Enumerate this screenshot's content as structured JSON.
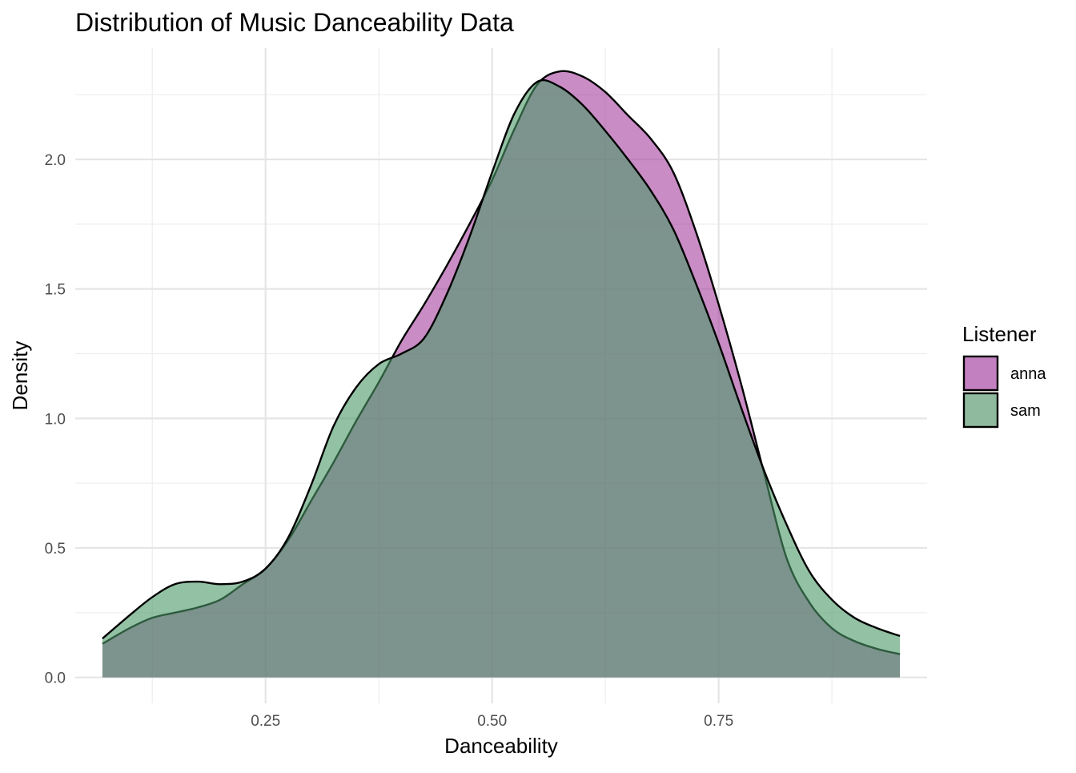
{
  "chart_data": {
    "type": "area",
    "subtype": "density",
    "title": "Distribution of Music Danceability Data",
    "xlabel": "Danceability",
    "ylabel": "Density",
    "xlim": [
      0.04,
      0.98
    ],
    "ylim": [
      -0.1,
      2.43
    ],
    "x_ticks": [
      0.25,
      0.5,
      0.75
    ],
    "x_tick_labels": [
      "0.25",
      "0.50",
      "0.75"
    ],
    "y_ticks": [
      0.0,
      0.5,
      1.0,
      1.5,
      2.0
    ],
    "y_tick_labels": [
      "0.0",
      "0.5",
      "1.0",
      "1.5",
      "2.0"
    ],
    "grid": true,
    "legend": {
      "title": "Listener",
      "placement": "right"
    },
    "series": [
      {
        "name": "anna",
        "fill_color": "#a53f9f",
        "legend_color": "#c380c0",
        "x": [
          0.07,
          0.1,
          0.125,
          0.15,
          0.175,
          0.2,
          0.225,
          0.25,
          0.275,
          0.3,
          0.325,
          0.35,
          0.375,
          0.4,
          0.425,
          0.45,
          0.475,
          0.5,
          0.525,
          0.55,
          0.575,
          0.6,
          0.625,
          0.65,
          0.675,
          0.7,
          0.725,
          0.75,
          0.775,
          0.8,
          0.825,
          0.85,
          0.875,
          0.9,
          0.925,
          0.95
        ],
        "y": [
          0.13,
          0.19,
          0.23,
          0.25,
          0.27,
          0.3,
          0.36,
          0.42,
          0.53,
          0.68,
          0.83,
          0.99,
          1.14,
          1.3,
          1.44,
          1.59,
          1.75,
          1.92,
          2.12,
          2.29,
          2.34,
          2.32,
          2.26,
          2.17,
          2.08,
          1.95,
          1.72,
          1.44,
          1.13,
          0.79,
          0.46,
          0.29,
          0.19,
          0.14,
          0.11,
          0.09
        ]
      },
      {
        "name": "sam",
        "fill_color": "#4b9768",
        "legend_color": "#8fba9e",
        "x": [
          0.07,
          0.1,
          0.125,
          0.15,
          0.175,
          0.2,
          0.225,
          0.25,
          0.275,
          0.3,
          0.325,
          0.35,
          0.375,
          0.4,
          0.425,
          0.45,
          0.475,
          0.5,
          0.525,
          0.55,
          0.575,
          0.6,
          0.625,
          0.65,
          0.675,
          0.7,
          0.725,
          0.75,
          0.775,
          0.8,
          0.825,
          0.85,
          0.875,
          0.9,
          0.925,
          0.95
        ],
        "y": [
          0.15,
          0.24,
          0.31,
          0.36,
          0.37,
          0.36,
          0.37,
          0.42,
          0.54,
          0.74,
          0.97,
          1.12,
          1.21,
          1.25,
          1.31,
          1.48,
          1.7,
          1.95,
          2.18,
          2.3,
          2.28,
          2.21,
          2.11,
          2.0,
          1.88,
          1.73,
          1.52,
          1.29,
          1.04,
          0.8,
          0.59,
          0.41,
          0.3,
          0.23,
          0.19,
          0.16
        ]
      }
    ]
  }
}
